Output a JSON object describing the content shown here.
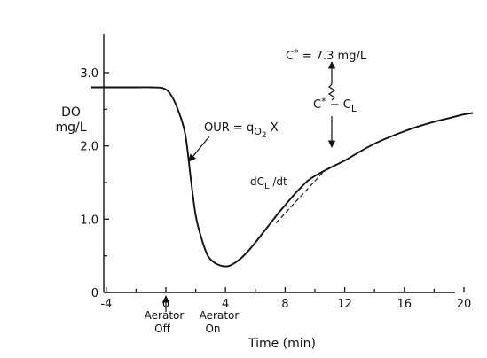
{
  "chart_data": {
    "type": "line",
    "xlabel": "Time (min)",
    "ylabel_lines": [
      "DO",
      "mg/L"
    ],
    "xlim": [
      -5,
      21.5
    ],
    "ylim": [
      0,
      3.5
    ],
    "x_ticks": [
      -4,
      0,
      4,
      8,
      12,
      16,
      20
    ],
    "x_tick_labels": [
      "-4",
      "0",
      "4",
      "8",
      "12",
      "16",
      "20"
    ],
    "y_ticks": [
      0,
      1.0,
      2.0,
      3.0
    ],
    "y_tick_labels": [
      "0",
      "1.0",
      "2.0",
      "3.0"
    ],
    "grid": false,
    "series": [
      {
        "x": [
          -5,
          -4,
          -2,
          -1,
          -0.2,
          0.3,
          0.8,
          1.3,
          1.7,
          2.0,
          2.3,
          2.7,
          3.0,
          3.4,
          3.8,
          4.2,
          4.6,
          5.0,
          5.5,
          6.0,
          6.5,
          7.0,
          7.5,
          8.0,
          8.5,
          9.0,
          9.5,
          10.0,
          11.0,
          12.0,
          13.0,
          14.0,
          15.0,
          16.0,
          17.0,
          18.0,
          19.0,
          20.0,
          20.6
        ],
        "y": [
          2.8,
          2.8,
          2.8,
          2.8,
          2.79,
          2.71,
          2.5,
          2.16,
          1.5,
          1.05,
          0.8,
          0.55,
          0.45,
          0.39,
          0.36,
          0.36,
          0.4,
          0.46,
          0.56,
          0.68,
          0.81,
          0.94,
          1.07,
          1.19,
          1.31,
          1.42,
          1.52,
          1.59,
          1.7,
          1.8,
          1.92,
          2.03,
          2.12,
          2.2,
          2.27,
          2.33,
          2.38,
          2.43,
          2.45
        ]
      }
    ],
    "annotations": {
      "our": [
        "OUR = q",
        "O",
        "2",
        " X"
      ],
      "cstar": [
        "C",
        "*",
        " = 7.3 mg/L"
      ],
      "diff": [
        "C",
        "*",
        " − C",
        "L"
      ],
      "slope": [
        "dC",
        "L",
        " /dt"
      ],
      "aerator_off": [
        "Aerator",
        "Off"
      ],
      "aerator_on": [
        "Aerator",
        "On"
      ]
    },
    "tangent_line": {
      "x": [
        7.4,
        10.5
      ],
      "y": [
        0.95,
        1.63
      ]
    }
  }
}
